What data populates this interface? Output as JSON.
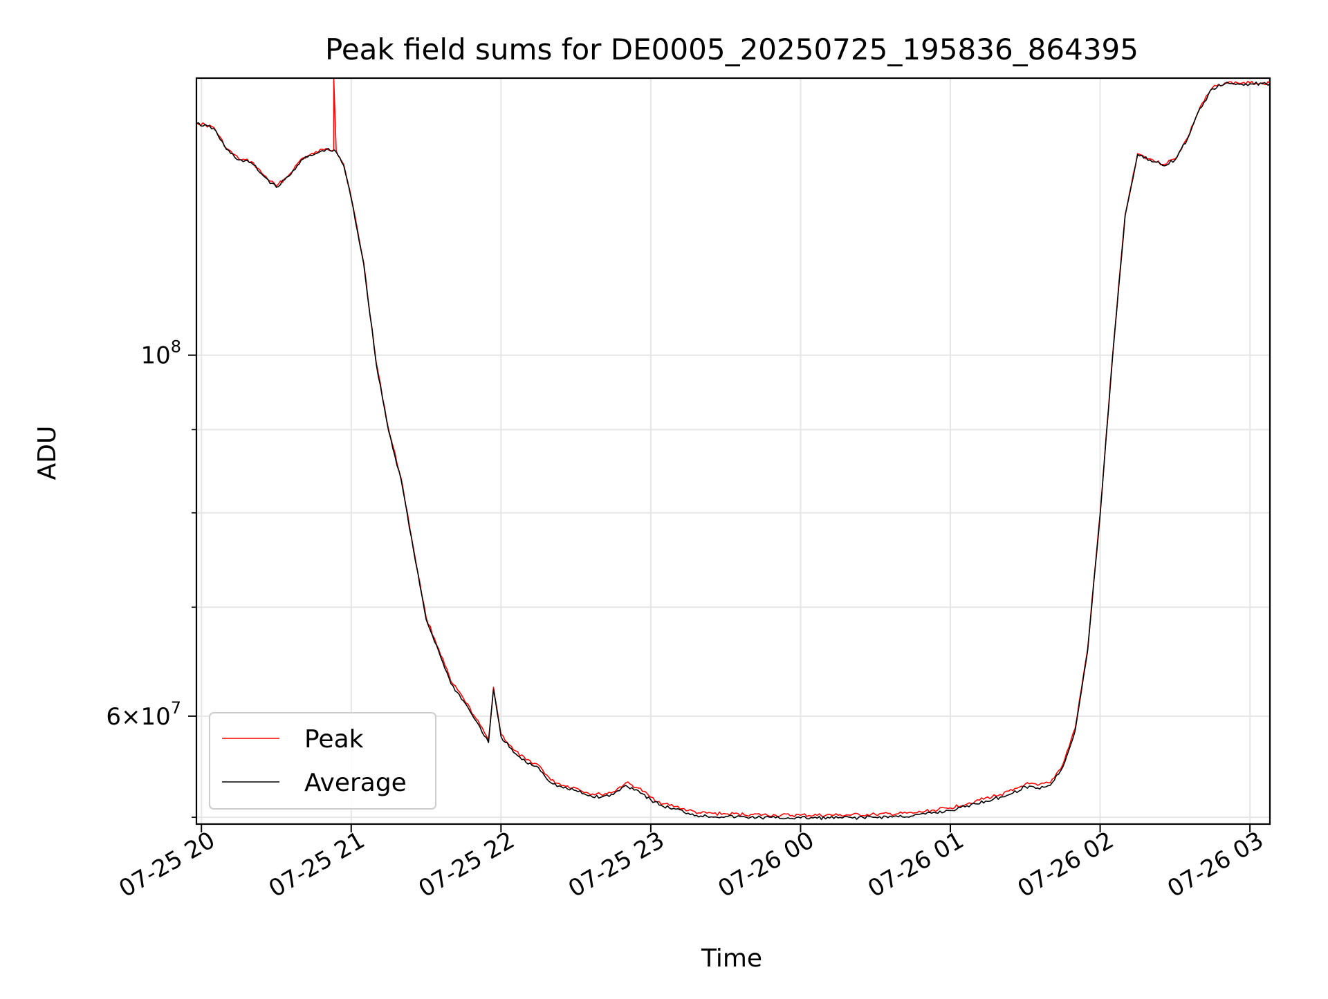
{
  "chart_data": {
    "type": "line",
    "title": "Peak field sums for DE0005_20250725_195836_864395",
    "xlabel": "Time",
    "ylabel": "ADU",
    "yscale": "log",
    "xlim": [
      "2025-07-25 19:58",
      "2025-07-26 03:08"
    ],
    "ylim": [
      51500000,
      148000000
    ],
    "grid": true,
    "legend_position": "lower-left",
    "x_ticks": [
      {
        "label": "07-25 20",
        "value": "2025-07-25 20:00"
      },
      {
        "label": "07-25 21",
        "value": "2025-07-25 21:00"
      },
      {
        "label": "07-25 22",
        "value": "2025-07-25 22:00"
      },
      {
        "label": "07-25 23",
        "value": "2025-07-25 23:00"
      },
      {
        "label": "07-26 00",
        "value": "2025-07-26 00:00"
      },
      {
        "label": "07-26 01",
        "value": "2025-07-26 01:00"
      },
      {
        "label": "07-26 02",
        "value": "2025-07-26 02:00"
      },
      {
        "label": "07-26 03",
        "value": "2025-07-26 03:00"
      }
    ],
    "y_ticks_major": [
      {
        "value": 100000000,
        "base": "10",
        "exp": "8",
        "mant": ""
      },
      {
        "value": 60000000,
        "base": "10",
        "exp": "7",
        "mant": "6×"
      }
    ],
    "y_ticks_minor": [
      52000000,
      70000000,
      80000000,
      90000000
    ],
    "series": [
      {
        "name": "Peak",
        "color": "#ff0000",
        "x": [
          "2025-07-25 19:58",
          "2025-07-25 20:05",
          "2025-07-25 20:10",
          "2025-07-25 20:15",
          "2025-07-25 20:20",
          "2025-07-25 20:25",
          "2025-07-25 20:30",
          "2025-07-25 20:35",
          "2025-07-25 20:40",
          "2025-07-25 20:45",
          "2025-07-25 20:50",
          "2025-07-25 20:53",
          "2025-07-25 20:53",
          "2025-07-25 20:54",
          "2025-07-25 20:57",
          "2025-07-25 21:00",
          "2025-07-25 21:05",
          "2025-07-25 21:10",
          "2025-07-25 21:15",
          "2025-07-25 21:20",
          "2025-07-25 21:25",
          "2025-07-25 21:30",
          "2025-07-25 21:35",
          "2025-07-25 21:40",
          "2025-07-25 21:45",
          "2025-07-25 21:50",
          "2025-07-25 21:55",
          "2025-07-25 21:57",
          "2025-07-25 22:00",
          "2025-07-25 22:05",
          "2025-07-25 22:10",
          "2025-07-25 22:15",
          "2025-07-25 22:20",
          "2025-07-25 22:25",
          "2025-07-25 22:30",
          "2025-07-25 22:35",
          "2025-07-25 22:40",
          "2025-07-25 22:45",
          "2025-07-25 22:50",
          "2025-07-25 22:55",
          "2025-07-25 23:00",
          "2025-07-25 23:05",
          "2025-07-25 23:10",
          "2025-07-25 23:15",
          "2025-07-25 23:20",
          "2025-07-25 23:30",
          "2025-07-25 23:40",
          "2025-07-25 23:50",
          "2025-07-26 00:00",
          "2025-07-26 00:15",
          "2025-07-26 00:30",
          "2025-07-26 00:45",
          "2025-07-26 01:00",
          "2025-07-26 01:10",
          "2025-07-26 01:20",
          "2025-07-26 01:25",
          "2025-07-26 01:30",
          "2025-07-26 01:35",
          "2025-07-26 01:40",
          "2025-07-26 01:45",
          "2025-07-26 01:50",
          "2025-07-26 01:55",
          "2025-07-26 02:00",
          "2025-07-26 02:05",
          "2025-07-26 02:10",
          "2025-07-26 02:15",
          "2025-07-26 02:20",
          "2025-07-26 02:25",
          "2025-07-26 02:30",
          "2025-07-26 02:35",
          "2025-07-26 02:40",
          "2025-07-26 02:45",
          "2025-07-26 02:50",
          "2025-07-26 02:55",
          "2025-07-26 03:00",
          "2025-07-26 03:05",
          "2025-07-26 03:08"
        ],
        "values": [
          139000000,
          138000000,
          134000000,
          132000000,
          131500000,
          129000000,
          127000000,
          129000000,
          132000000,
          133000000,
          134000000,
          133700000,
          148000000,
          133500000,
          131000000,
          125000000,
          114000000,
          99000000,
          90000000,
          84000000,
          76000000,
          69000000,
          66000000,
          63000000,
          61500000,
          59800000,
          58000000,
          62500000,
          58500000,
          57200000,
          56400000,
          56000000,
          54800000,
          54400000,
          54200000,
          53800000,
          53700000,
          53900000,
          54600000,
          54200000,
          53500000,
          53000000,
          52800000,
          52500000,
          52300000,
          52250000,
          52200000,
          52150000,
          52150000,
          52150000,
          52200000,
          52300000,
          52700000,
          53200000,
          53700000,
          54000000,
          54500000,
          54400000,
          54600000,
          56000000,
          59000000,
          66000000,
          80000000,
          100000000,
          122000000,
          133000000,
          132000000,
          131000000,
          132000000,
          136000000,
          142000000,
          146000000,
          147000000,
          147000000,
          147000000,
          147000000,
          147000000
        ]
      },
      {
        "name": "Average",
        "color": "#000000",
        "x": [
          "2025-07-25 19:58",
          "2025-07-25 20:05",
          "2025-07-25 20:10",
          "2025-07-25 20:15",
          "2025-07-25 20:20",
          "2025-07-25 20:25",
          "2025-07-25 20:30",
          "2025-07-25 20:35",
          "2025-07-25 20:40",
          "2025-07-25 20:45",
          "2025-07-25 20:50",
          "2025-07-25 20:54",
          "2025-07-25 20:57",
          "2025-07-25 21:00",
          "2025-07-25 21:05",
          "2025-07-25 21:10",
          "2025-07-25 21:15",
          "2025-07-25 21:20",
          "2025-07-25 21:25",
          "2025-07-25 21:30",
          "2025-07-25 21:35",
          "2025-07-25 21:40",
          "2025-07-25 21:45",
          "2025-07-25 21:50",
          "2025-07-25 21:55",
          "2025-07-25 21:57",
          "2025-07-25 22:00",
          "2025-07-25 22:05",
          "2025-07-25 22:10",
          "2025-07-25 22:15",
          "2025-07-25 22:20",
          "2025-07-25 22:25",
          "2025-07-25 22:30",
          "2025-07-25 22:35",
          "2025-07-25 22:40",
          "2025-07-25 22:45",
          "2025-07-25 22:50",
          "2025-07-25 22:55",
          "2025-07-25 23:00",
          "2025-07-25 23:05",
          "2025-07-25 23:10",
          "2025-07-25 23:15",
          "2025-07-25 23:20",
          "2025-07-25 23:30",
          "2025-07-25 23:40",
          "2025-07-25 23:50",
          "2025-07-26 00:00",
          "2025-07-26 00:15",
          "2025-07-26 00:30",
          "2025-07-26 00:45",
          "2025-07-26 01:00",
          "2025-07-26 01:10",
          "2025-07-26 01:20",
          "2025-07-26 01:25",
          "2025-07-26 01:30",
          "2025-07-26 01:35",
          "2025-07-26 01:40",
          "2025-07-26 01:45",
          "2025-07-26 01:50",
          "2025-07-26 01:55",
          "2025-07-26 02:00",
          "2025-07-26 02:05",
          "2025-07-26 02:10",
          "2025-07-26 02:15",
          "2025-07-26 02:20",
          "2025-07-26 02:25",
          "2025-07-26 02:30",
          "2025-07-26 02:35",
          "2025-07-26 02:40",
          "2025-07-26 02:45",
          "2025-07-26 02:50",
          "2025-07-26 02:55",
          "2025-07-26 03:00",
          "2025-07-26 03:05",
          "2025-07-26 03:08"
        ],
        "values": [
          138800000,
          137800000,
          133800000,
          131800000,
          131300000,
          128800000,
          126800000,
          128800000,
          131800000,
          132800000,
          133800000,
          133300000,
          130800000,
          124800000,
          113800000,
          98800000,
          89800000,
          83800000,
          75800000,
          68800000,
          65800000,
          62800000,
          61300000,
          59600000,
          57800000,
          62300000,
          58300000,
          57000000,
          56200000,
          55800000,
          54600000,
          54200000,
          54000000,
          53600000,
          53500000,
          53700000,
          54400000,
          54000000,
          53300000,
          52800000,
          52600000,
          52300000,
          52100000,
          52050000,
          52000000,
          51950000,
          51950000,
          51950000,
          52000000,
          52100000,
          52500000,
          53000000,
          53500000,
          53800000,
          54300000,
          54200000,
          54400000,
          55800000,
          58800000,
          65800000,
          79800000,
          99800000,
          121800000,
          132800000,
          131800000,
          130800000,
          131800000,
          135800000,
          141800000,
          145800000,
          146800000,
          146800000,
          146800000,
          146800000,
          146800000
        ]
      }
    ]
  }
}
